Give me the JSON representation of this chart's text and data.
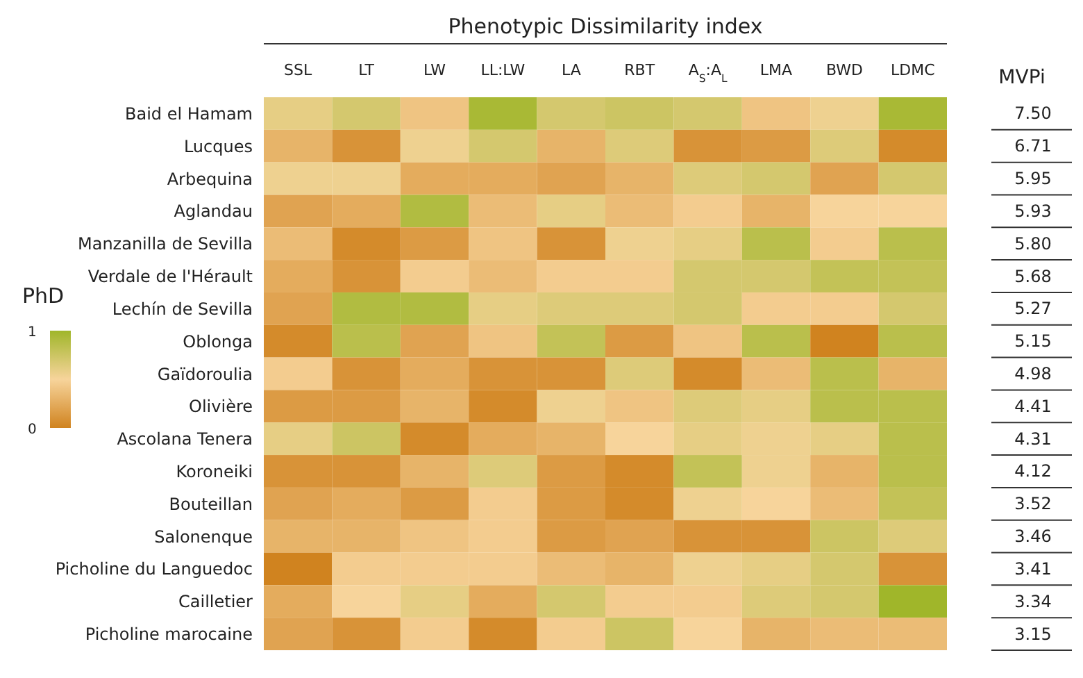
{
  "chart_data": {
    "type": "heatmap",
    "title": "Phenotypic Dissimilarity index",
    "clabel": "PhD",
    "y2label": "MVPi",
    "categories": [
      "SSL",
      "LT",
      "LW",
      "LL:LW",
      "LA",
      "RBT",
      "A$_{S}$:A$_{L}$",
      "LMA",
      "BWD",
      "LDMC"
    ],
    "y_categories": [
      "Baid el Hamam",
      "Lucques",
      "Arbequina",
      "Aglandau",
      "Manzanilla de Sevilla",
      "Verdale de l'Hérault",
      "Lechín de Sevilla",
      "Oblonga",
      "Gaïdoroulia",
      "Olivière",
      "Ascolana Tenera",
      "Koroneiki",
      "Bouteillan",
      "Salonenque",
      "Picholine du Languedoc",
      "Cailletier",
      "Picholine marocaine"
    ],
    "y2_categories": [
      "7.50",
      "6.71",
      "5.95",
      "5.93",
      "5.80",
      "5.68",
      "5.27",
      "5.15",
      "4.98",
      "4.41",
      "4.31",
      "4.12",
      "3.52",
      "3.46",
      "3.41",
      "3.34",
      "3.15"
    ],
    "cells": [
      [
        0.6,
        0.7,
        0.4,
        0.95,
        0.7,
        0.75,
        0.7,
        0.4,
        0.55,
        0.95
      ],
      [
        0.3,
        0.1,
        0.55,
        0.7,
        0.3,
        0.65,
        0.1,
        0.15,
        0.65,
        0.05
      ],
      [
        0.55,
        0.55,
        0.25,
        0.25,
        0.2,
        0.3,
        0.65,
        0.7,
        0.2,
        0.7
      ],
      [
        0.2,
        0.25,
        0.9,
        0.35,
        0.6,
        0.35,
        0.45,
        0.3,
        0.5,
        0.5
      ],
      [
        0.35,
        0.05,
        0.15,
        0.4,
        0.1,
        0.55,
        0.6,
        0.85,
        0.45,
        0.85
      ],
      [
        0.25,
        0.1,
        0.45,
        0.35,
        0.45,
        0.45,
        0.7,
        0.7,
        0.8,
        0.8
      ],
      [
        0.2,
        0.9,
        0.9,
        0.6,
        0.65,
        0.65,
        0.7,
        0.45,
        0.45,
        0.7
      ],
      [
        0.05,
        0.85,
        0.2,
        0.4,
        0.8,
        0.15,
        0.4,
        0.85,
        0.0,
        0.85
      ],
      [
        0.45,
        0.1,
        0.25,
        0.1,
        0.1,
        0.65,
        0.05,
        0.35,
        0.85,
        0.3
      ],
      [
        0.15,
        0.15,
        0.3,
        0.05,
        0.55,
        0.4,
        0.65,
        0.6,
        0.85,
        0.85
      ],
      [
        0.6,
        0.75,
        0.05,
        0.25,
        0.3,
        0.5,
        0.6,
        0.55,
        0.6,
        0.85
      ],
      [
        0.1,
        0.1,
        0.3,
        0.65,
        0.15,
        0.05,
        0.8,
        0.55,
        0.3,
        0.85
      ],
      [
        0.2,
        0.25,
        0.15,
        0.45,
        0.15,
        0.05,
        0.55,
        0.5,
        0.35,
        0.8
      ],
      [
        0.3,
        0.3,
        0.4,
        0.45,
        0.15,
        0.2,
        0.1,
        0.1,
        0.75,
        0.65
      ],
      [
        0.0,
        0.45,
        0.45,
        0.45,
        0.35,
        0.3,
        0.55,
        0.6,
        0.7,
        0.1
      ],
      [
        0.25,
        0.5,
        0.6,
        0.25,
        0.7,
        0.45,
        0.45,
        0.65,
        0.7,
        1.0
      ],
      [
        0.2,
        0.1,
        0.45,
        0.05,
        0.45,
        0.75,
        0.5,
        0.3,
        0.35,
        0.35
      ]
    ],
    "clim": [
      0,
      1
    ],
    "cticks": [
      0,
      1
    ]
  }
}
